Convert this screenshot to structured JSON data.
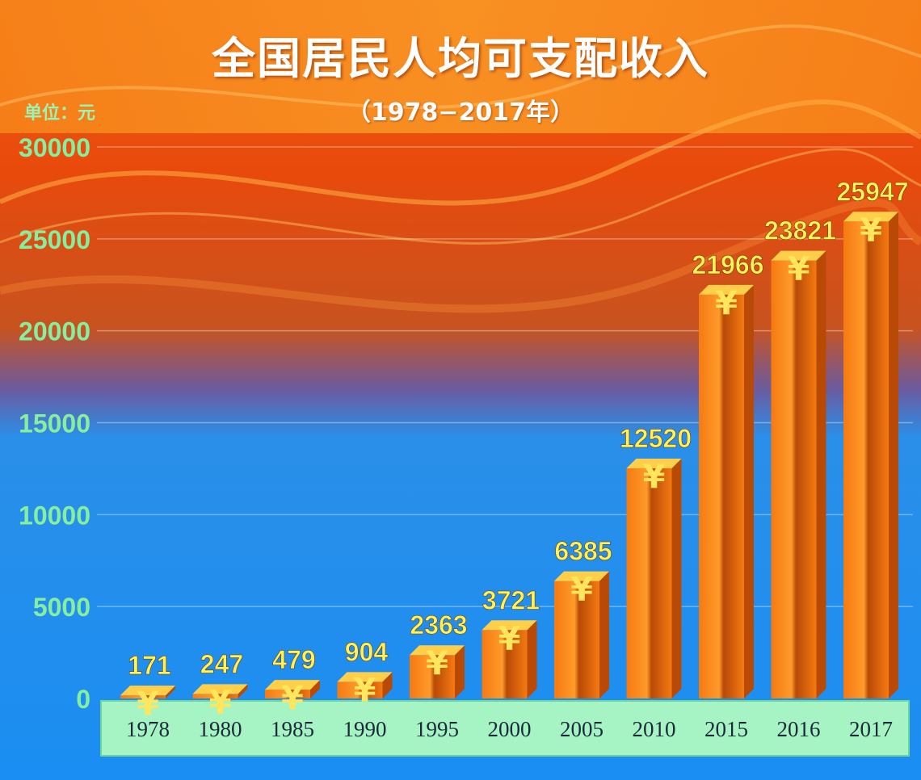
{
  "header": {
    "title": "全国居民人均可支配收入",
    "subtitle": "（1978−2017年）",
    "unit_label": "单位：元"
  },
  "colors": {
    "bar": "#f57a12",
    "bar_dark": "#b84a05",
    "bar_top": "#ffcf4a",
    "yen_mark": "#ffe65c",
    "data_label": "#fff25a",
    "y_tick": "#86ee9f",
    "x_band": "#a6f3c3"
  },
  "chart_data": {
    "type": "bar",
    "title": "全国居民人均可支配收入",
    "subtitle": "（1978−2017年）",
    "ylabel": "单位：元",
    "xlabel": "",
    "categories": [
      "1978",
      "1980",
      "1985",
      "1990",
      "1995",
      "2000",
      "2005",
      "2010",
      "2015",
      "2016",
      "2017"
    ],
    "values": [
      171,
      247,
      479,
      904,
      2363,
      3721,
      6385,
      12520,
      21966,
      23821,
      25947
    ],
    "data_labels": [
      "171",
      "247",
      "479",
      "904",
      "2363",
      "3721",
      "6385",
      "12520",
      "21966",
      "23821",
      "25947"
    ],
    "ylim": [
      0,
      30000
    ],
    "yticks": [
      0,
      5000,
      10000,
      15000,
      20000,
      25000,
      30000
    ],
    "ytick_labels": [
      "0",
      "5000",
      "10000",
      "15000",
      "20000",
      "25000",
      "30000"
    ],
    "grid": true,
    "legend": "none",
    "bar_marker_icon": "yen-icon"
  }
}
